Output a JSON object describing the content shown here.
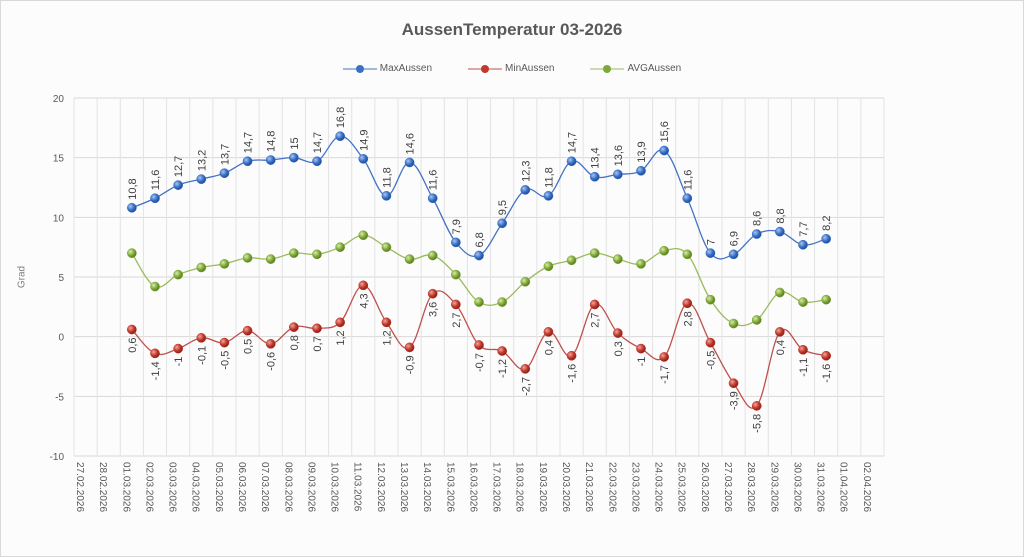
{
  "chart_data": {
    "type": "line",
    "title": "AussenTemperatur 03-2026",
    "xlabel": "",
    "ylabel": "Grad",
    "ylim": [
      -10,
      20
    ],
    "yticks": [
      "20",
      "15",
      "10",
      "5",
      "0",
      "-5",
      "-10"
    ],
    "ytick_values": [
      20,
      15,
      10,
      5,
      0,
      -5,
      -10
    ],
    "grid": true,
    "legend_position": "top",
    "x_ticks": [
      "27.02.2026",
      "28.02.2026",
      "01.03.2026",
      "02.03.2026",
      "03.03.2026",
      "04.03.2026",
      "05.03.2026",
      "06.03.2026",
      "07.03.2026",
      "08.03.2026",
      "09.03.2026",
      "10.03.2026",
      "11.03.2026",
      "12.03.2026",
      "13.03.2026",
      "14.03.2026",
      "15.03.2026",
      "16.03.2026",
      "17.03.2026",
      "18.03.2026",
      "19.03.2026",
      "20.03.2026",
      "21.03.2026",
      "22.03.2026",
      "23.03.2026",
      "24.03.2026",
      "25.03.2026",
      "26.03.2026",
      "27.03.2026",
      "28.03.2026",
      "29.03.2026",
      "30.03.2026",
      "31.03.2026",
      "01.04.2026",
      "02.04.2026"
    ],
    "data_start_index": 2,
    "series": [
      {
        "name": "MaxAussen",
        "color": "#4472c4",
        "marker": "#3a6fc6",
        "values": [
          10.8,
          11.6,
          12.7,
          13.2,
          13.7,
          14.7,
          14.8,
          15,
          14.7,
          16.8,
          14.9,
          11.8,
          14.6,
          11.6,
          7.9,
          6.8,
          9.5,
          12.3,
          11.8,
          14.7,
          13.4,
          13.6,
          13.9,
          15.6,
          11.6,
          7,
          6.9,
          8.6,
          8.8,
          7.7,
          8.2
        ],
        "labels": [
          "10,8",
          "11,6",
          "12,7",
          "13,2",
          "13,7",
          "14,7",
          "14,8",
          "15",
          "14,7",
          "16,8",
          "14,9",
          "11,8",
          "14,6",
          "11,6",
          "7,9",
          "6,8",
          "9,5",
          "12,3",
          "11,8",
          "14,7",
          "13,4",
          "13,6",
          "13,9",
          "15,6",
          "11,6",
          "7",
          "6,9",
          "8,6",
          "8,8",
          "7,7",
          "8,2"
        ],
        "label_position": "above"
      },
      {
        "name": "MinAussen",
        "color": "#c0504d",
        "marker": "#c0392b",
        "values": [
          0.6,
          -1.4,
          -1,
          -0.1,
          -0.5,
          0.5,
          -0.6,
          0.8,
          0.7,
          1.2,
          4.3,
          1.2,
          -0.9,
          3.6,
          2.7,
          -0.7,
          -1.2,
          -2.7,
          0.4,
          -1.6,
          2.7,
          0.3,
          -1,
          -1.7,
          2.8,
          -0.5,
          -3.9,
          -5.8,
          0.4,
          -1.1,
          -1.6
        ],
        "labels": [
          "0,6",
          "-1,4",
          "-1",
          "-0,1",
          "-0,5",
          "0,5",
          "-0,6",
          "0,8",
          "0,7",
          "1,2",
          "4,3",
          "1,2",
          "-0,9",
          "3,6",
          "2,7",
          "-0,7",
          "-1,2",
          "-2,7",
          "0,4",
          "-1,6",
          "2,7",
          "0,3",
          "-1",
          "-1,7",
          "2,8",
          "-0,5",
          "-3,9",
          "-5,8",
          "0,4",
          "-1,1",
          "-1,6"
        ],
        "label_position": "below"
      },
      {
        "name": "AVGAussen",
        "color": "#9bbb59",
        "marker": "#7fa83a",
        "values": [
          7.0,
          4.2,
          5.2,
          5.8,
          6.1,
          6.6,
          6.5,
          7.0,
          6.9,
          7.5,
          8.5,
          7.5,
          6.5,
          6.8,
          5.2,
          2.9,
          2.9,
          4.6,
          5.9,
          6.4,
          7.0,
          6.5,
          6.1,
          7.2,
          6.9,
          3.1,
          1.1,
          1.4,
          3.7,
          2.9,
          3.1
        ],
        "labels": []
      }
    ]
  }
}
